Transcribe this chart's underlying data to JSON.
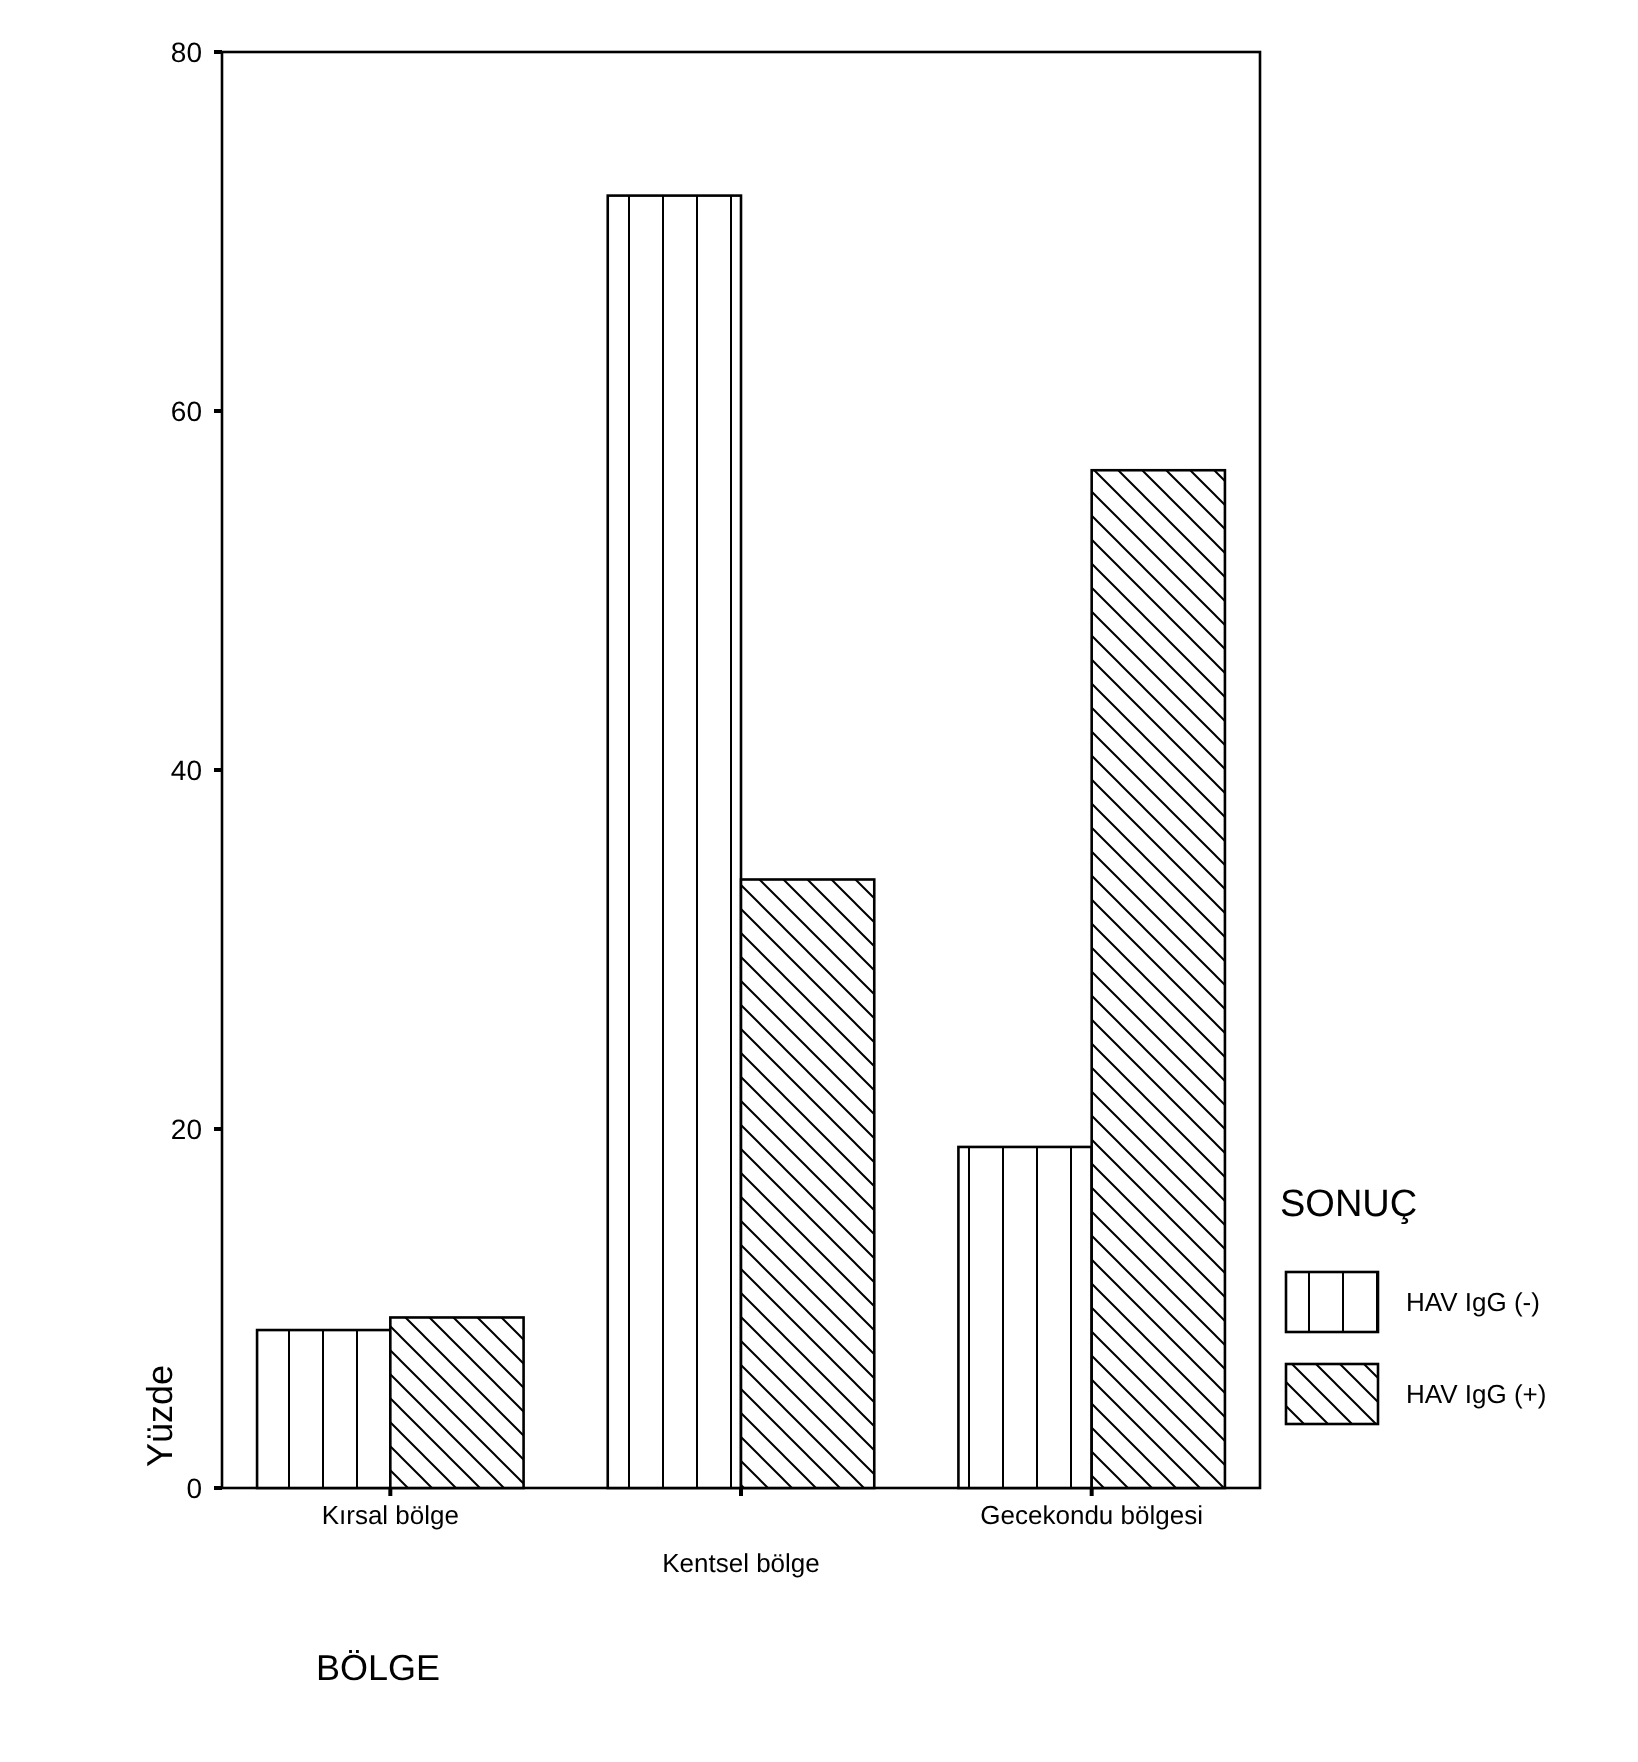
{
  "chart_data": {
    "type": "bar",
    "xlabel": "BÖLGE",
    "ylabel": "Yüzde",
    "legend_title": "SONUÇ",
    "legend": "right",
    "categories": [
      "Kırsal bölge",
      "Kentsel bölge",
      "Gecekondu bölgesi"
    ],
    "series": [
      {
        "name": "HAV IgG (-)",
        "color": "#000000",
        "values": [
          8.8,
          72.0,
          19.0
        ]
      },
      {
        "name": "HAV IgG (+)",
        "color": "#000000",
        "values": [
          9.5,
          33.9,
          56.7
        ]
      }
    ],
    "ylim": [
      0,
      80
    ],
    "yticks": [
      0,
      20,
      40,
      60,
      80
    ],
    "grid": false
  }
}
